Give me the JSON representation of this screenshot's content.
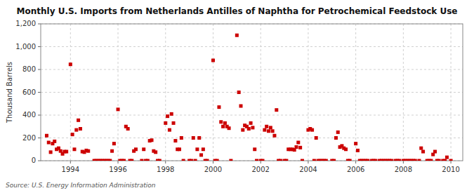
{
  "chart_data": {
    "type": "scatter",
    "title": "Monthly U.S. Imports from Netherlands Antilles of Naphtha for Petrochemical Feedstock Use",
    "y_label": "Thousand Barrels",
    "annotations": [
      "Source: U.S. Energy Information Administration"
    ],
    "color": "#cc0000",
    "marker": "square",
    "grid": true,
    "xlim": [
      1992.75,
      2010.5
    ],
    "xticks": [
      1994,
      1996,
      1998,
      2000,
      2002,
      2004,
      2006,
      2008,
      2010
    ],
    "ylim": [
      0,
      1200
    ],
    "yticks": [
      0,
      200,
      400,
      600,
      800,
      {
        "value": 1000,
        "label": "1,000"
      },
      {
        "value": 1200,
        "label": "1,200"
      }
    ],
    "x": [
      1993.0,
      1993.083,
      1993.167,
      1993.25,
      1993.333,
      1993.417,
      1993.5,
      1993.583,
      1993.667,
      1993.75,
      1993.833,
      1994.0,
      1994.083,
      1994.167,
      1994.25,
      1994.333,
      1994.417,
      1994.5,
      1994.583,
      1994.667,
      1994.75,
      1995.0,
      1995.083,
      1995.167,
      1995.25,
      1995.333,
      1995.417,
      1995.5,
      1995.583,
      1995.667,
      1995.75,
      1995.833,
      1996.0,
      1996.083,
      1996.167,
      1996.25,
      1996.333,
      1996.417,
      1996.5,
      1996.583,
      1996.667,
      1996.75,
      1997.0,
      1997.083,
      1997.167,
      1997.25,
      1997.333,
      1997.417,
      1997.5,
      1997.583,
      1997.667,
      1997.75,
      1998.0,
      1998.083,
      1998.167,
      1998.25,
      1998.333,
      1998.417,
      1998.5,
      1998.583,
      1998.667,
      1998.75,
      1999.0,
      1999.083,
      1999.167,
      1999.25,
      1999.333,
      1999.417,
      1999.5,
      1999.583,
      1999.667,
      1999.75,
      2000.0,
      2000.083,
      2000.167,
      2000.25,
      2000.333,
      2000.417,
      2000.5,
      2000.583,
      2000.667,
      2000.75,
      2001.0,
      2001.083,
      2001.167,
      2001.25,
      2001.333,
      2001.417,
      2001.5,
      2001.583,
      2001.667,
      2001.75,
      2001.833,
      2002.0,
      2002.083,
      2002.167,
      2002.25,
      2002.333,
      2002.417,
      2002.5,
      2002.583,
      2002.667,
      2002.75,
      2002.833,
      2003.0,
      2003.083,
      2003.167,
      2003.25,
      2003.333,
      2003.417,
      2003.5,
      2003.583,
      2003.667,
      2003.75,
      2004.0,
      2004.083,
      2004.167,
      2004.25,
      2004.333,
      2004.417,
      2004.5,
      2004.583,
      2004.667,
      2004.75,
      2005.0,
      2005.083,
      2005.167,
      2005.25,
      2005.333,
      2005.417,
      2005.5,
      2005.583,
      2005.667,
      2005.75,
      2006.0,
      2006.083,
      2006.167,
      2006.25,
      2006.333,
      2006.417,
      2006.5,
      2006.667,
      2006.75,
      2006.833,
      2007.0,
      2007.083,
      2007.167,
      2007.25,
      2007.333,
      2007.417,
      2007.5,
      2007.667,
      2007.75,
      2007.833,
      2008.0,
      2008.083,
      2008.167,
      2008.25,
      2008.333,
      2008.417,
      2008.5,
      2008.667,
      2008.75,
      2008.833,
      2009.0,
      2009.083,
      2009.167,
      2009.25,
      2009.333,
      2009.417,
      2009.5,
      2009.667,
      2009.75,
      2009.833,
      2010.0
    ],
    "values": [
      220,
      160,
      75,
      150,
      170,
      100,
      110,
      85,
      60,
      80,
      80,
      845,
      230,
      100,
      270,
      355,
      280,
      80,
      75,
      90,
      85,
      0,
      0,
      0,
      0,
      0,
      0,
      0,
      0,
      0,
      85,
      150,
      450,
      0,
      0,
      0,
      300,
      280,
      0,
      0,
      85,
      100,
      0,
      100,
      0,
      0,
      175,
      180,
      85,
      75,
      0,
      0,
      330,
      390,
      270,
      410,
      330,
      175,
      100,
      100,
      200,
      0,
      0,
      0,
      200,
      0,
      100,
      200,
      50,
      100,
      0,
      0,
      880,
      0,
      0,
      470,
      340,
      300,
      330,
      300,
      285,
      0,
      1100,
      600,
      480,
      270,
      310,
      300,
      280,
      330,
      290,
      100,
      0,
      0,
      0,
      270,
      300,
      260,
      290,
      260,
      220,
      445,
      0,
      0,
      0,
      0,
      100,
      100,
      100,
      95,
      120,
      160,
      115,
      0,
      270,
      280,
      270,
      0,
      200,
      0,
      0,
      0,
      0,
      0,
      0,
      0,
      200,
      250,
      120,
      130,
      110,
      100,
      0,
      0,
      150,
      90,
      0,
      0,
      0,
      0,
      0,
      0,
      0,
      0,
      0,
      0,
      0,
      0,
      0,
      0,
      0,
      0,
      0,
      0,
      0,
      0,
      0,
      0,
      0,
      0,
      0,
      0,
      110,
      80,
      0,
      0,
      0,
      55,
      80,
      0,
      0,
      0,
      0,
      30,
      0
    ]
  }
}
